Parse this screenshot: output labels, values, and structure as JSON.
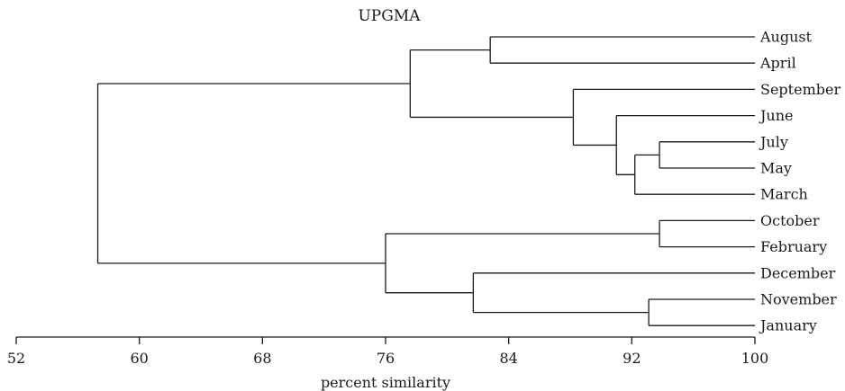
{
  "title": "UPGMA",
  "axis": {
    "label": "percent similarity",
    "min": 52,
    "max": 100,
    "ticks": [
      "52",
      "60",
      "68",
      "76",
      "84",
      "92",
      "100"
    ]
  },
  "leaves": [
    "August",
    "April",
    "September",
    "June",
    "July",
    "May",
    "March",
    "October",
    "February",
    "December",
    "November",
    "January"
  ],
  "tree": {
    "similarity": 57.3,
    "children": [
      {
        "similarity": 77.6,
        "children": [
          {
            "similarity": 82.8,
            "children": [
              {
                "leaf": "August"
              },
              {
                "leaf": "April"
              }
            ]
          },
          {
            "similarity": 88.2,
            "children": [
              {
                "leaf": "September"
              },
              {
                "similarity": 91.0,
                "children": [
                  {
                    "leaf": "June"
                  },
                  {
                    "similarity": 92.2,
                    "children": [
                      {
                        "similarity": 93.8,
                        "children": [
                          {
                            "leaf": "July"
                          },
                          {
                            "leaf": "May"
                          }
                        ]
                      },
                      {
                        "leaf": "March"
                      }
                    ]
                  }
                ]
              }
            ]
          }
        ]
      },
      {
        "similarity": 76.0,
        "children": [
          {
            "similarity": 93.8,
            "children": [
              {
                "leaf": "October"
              },
              {
                "leaf": "February"
              }
            ]
          },
          {
            "similarity": 81.7,
            "children": [
              {
                "leaf": "December"
              },
              {
                "similarity": 93.1,
                "children": [
                  {
                    "leaf": "November"
                  },
                  {
                    "leaf": "January"
                  }
                ]
              }
            ]
          }
        ]
      }
    ]
  }
}
